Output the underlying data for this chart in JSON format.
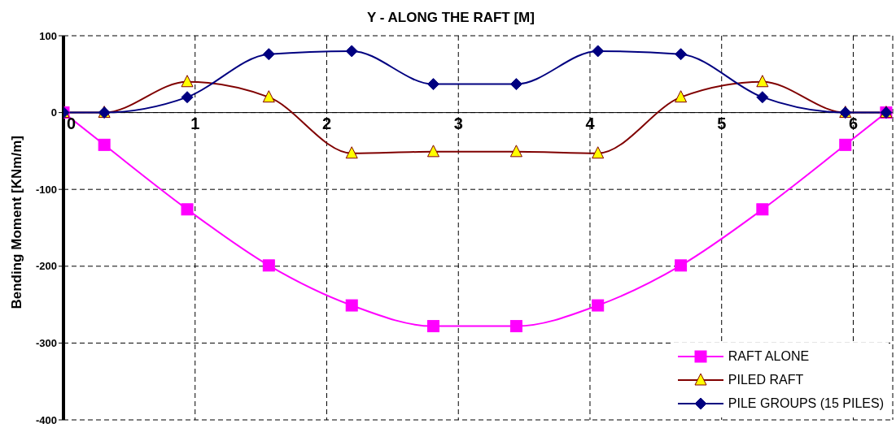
{
  "chart_data": {
    "type": "line",
    "title": "Y -  ALONG THE RAFT [M]",
    "ylabel": "Bending Moment [KNm/m]",
    "x": [
      0,
      0.31,
      0.94,
      1.56,
      2.19,
      2.81,
      3.44,
      4.06,
      4.69,
      5.31,
      5.94,
      6.25
    ],
    "xlim": [
      0,
      6.3
    ],
    "xticks": [
      0,
      1,
      2,
      3,
      4,
      5,
      6
    ],
    "ylim": [
      -400,
      100
    ],
    "yticks": [
      -400,
      -300,
      -200,
      -100,
      0,
      100
    ],
    "grid": true,
    "legend": "bottom right",
    "series": [
      {
        "name": "RAFT ALONE",
        "color": "#ff00ff",
        "marker": "square",
        "values": [
          0,
          -42,
          -126,
          -199,
          -251,
          -278,
          -278,
          -251,
          -199,
          -126,
          -42,
          0
        ]
      },
      {
        "name": "PILED RAFT",
        "color": "#800000",
        "marker": "triangle",
        "values": [
          0,
          0,
          40,
          20,
          -53,
          -51,
          -51,
          -53,
          20,
          40,
          0,
          0
        ]
      },
      {
        "name": "PILE GROUPS (15 PILES)",
        "color": "#000080",
        "marker": "diamond",
        "values": [
          0,
          0,
          20,
          76,
          80,
          37,
          37,
          80,
          76,
          20,
          0,
          0
        ]
      }
    ]
  }
}
